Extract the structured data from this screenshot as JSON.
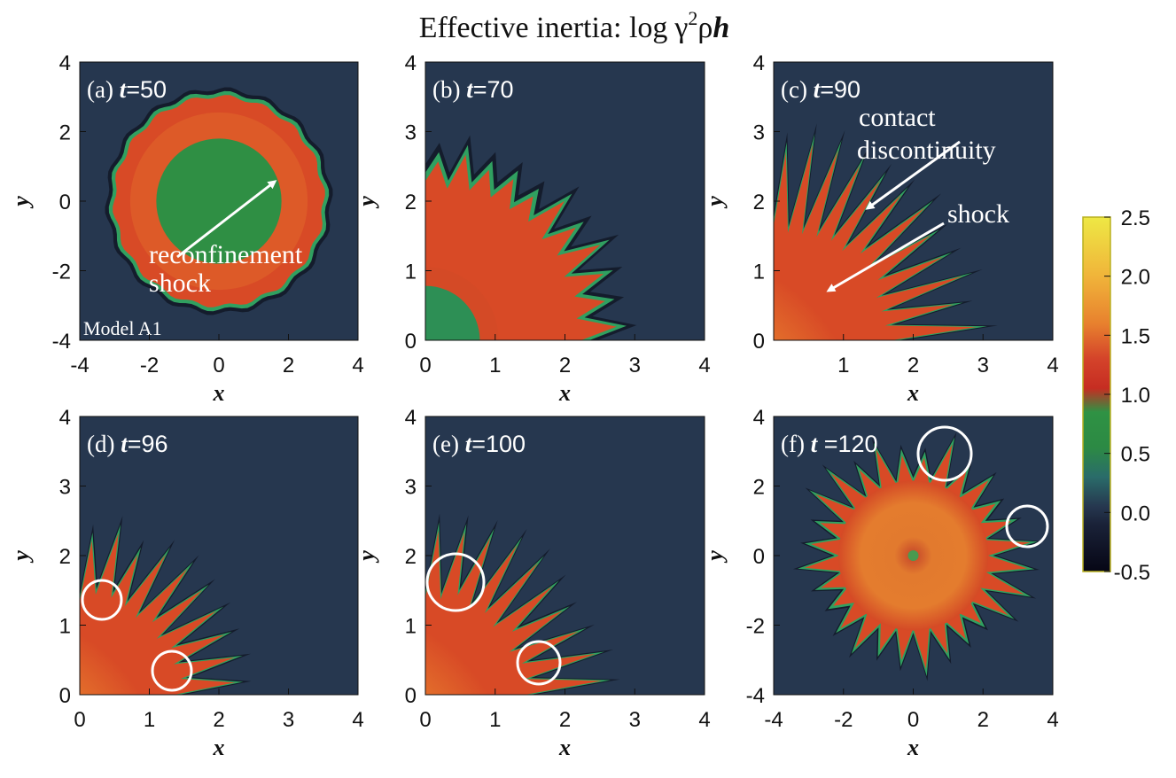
{
  "figure": {
    "title_text": "Effective inertia: log",
    "title_expr_gamma": "γ",
    "title_expr_sup": "2",
    "title_expr_rho": "ρ",
    "title_expr_h": "h"
  },
  "colorbar": {
    "ticks": [
      "2.5",
      "2.0",
      "1.5",
      "1.0",
      "0.5",
      "0.0",
      "-0.5"
    ],
    "range": [
      -0.5,
      2.5
    ],
    "stops": [
      {
        "v": -0.5,
        "color": "#060615"
      },
      {
        "v": -0.1,
        "color": "#1a2238"
      },
      {
        "v": 0.05,
        "color": "#26374f"
      },
      {
        "v": 0.3,
        "color": "#2a6c6a"
      },
      {
        "v": 0.55,
        "color": "#2c8a44"
      },
      {
        "v": 0.85,
        "color": "#2f9244"
      },
      {
        "v": 1.05,
        "color": "#c62d22"
      },
      {
        "v": 1.3,
        "color": "#d4432a"
      },
      {
        "v": 1.6,
        "color": "#e8812e"
      },
      {
        "v": 2.0,
        "color": "#f0b43a"
      },
      {
        "v": 2.5,
        "color": "#eee844"
      }
    ]
  },
  "colors": {
    "background_field": "#26374f",
    "green_core": "#2f8f44",
    "shell_red": "#d84a26",
    "shell_orange": "#e8812e",
    "edge_green": "#30a060",
    "edge_dark": "#141c2c",
    "annotation": "#ffffff"
  },
  "chart_data": [
    {
      "id": "a",
      "type": "heatmap",
      "label": "(a) ",
      "time_symbol": "t",
      "time_value": "=50",
      "xlim": [
        -4,
        4
      ],
      "ylim": [
        -4,
        4
      ],
      "xticks": [
        "-4",
        "-2",
        "0",
        "2",
        "4"
      ],
      "yticks": [
        "-4",
        "-2",
        "0",
        "2",
        "4"
      ],
      "xlabel": "x",
      "ylabel": "y",
      "model_label": "Model A1",
      "annotations": [
        "reconfinement",
        "shock"
      ]
    },
    {
      "id": "b",
      "type": "heatmap",
      "label": "(b) ",
      "time_symbol": "t",
      "time_value": "=70",
      "xlim": [
        0,
        4
      ],
      "ylim": [
        0,
        4
      ],
      "xticks": [
        "0",
        "1",
        "2",
        "3",
        "4"
      ],
      "yticks": [
        "0",
        "1",
        "2",
        "3",
        "4"
      ],
      "xlabel": "x",
      "ylabel": "y"
    },
    {
      "id": "c",
      "type": "heatmap",
      "label": "(c) ",
      "time_symbol": "t",
      "time_value": "=90",
      "xlim": [
        0,
        4
      ],
      "ylim": [
        0,
        4
      ],
      "xticks": [
        "1",
        "2",
        "3",
        "4"
      ],
      "yticks": [
        "0",
        "1",
        "2",
        "3",
        "4"
      ],
      "xlabel": "x",
      "ylabel": "y",
      "annotations": [
        "contact",
        "discontinuity",
        "shock"
      ]
    },
    {
      "id": "d",
      "type": "heatmap",
      "label": "(d) ",
      "time_symbol": "t",
      "time_value": "=96",
      "xlim": [
        0,
        4
      ],
      "ylim": [
        0,
        4
      ],
      "xticks": [
        "0",
        "1",
        "2",
        "3",
        "4"
      ],
      "yticks": [
        "0",
        "1",
        "2",
        "3",
        "4"
      ],
      "xlabel": "x",
      "ylabel": "y"
    },
    {
      "id": "e",
      "type": "heatmap",
      "label": "(e) ",
      "time_symbol": "t",
      "time_value": "=100",
      "xlim": [
        0,
        4
      ],
      "ylim": [
        0,
        4
      ],
      "xticks": [
        "0",
        "1",
        "2",
        "3",
        "4"
      ],
      "yticks": [
        "0",
        "1",
        "2",
        "3",
        "4"
      ],
      "xlabel": "x",
      "ylabel": "y"
    },
    {
      "id": "f",
      "type": "heatmap",
      "label": "(f) ",
      "time_symbol": "t",
      "time_value": " =120",
      "xlim": [
        -4,
        4
      ],
      "ylim": [
        -4,
        4
      ],
      "xticks": [
        "-4",
        "-2",
        "0",
        "2",
        "4"
      ],
      "yticks": [
        "-4",
        "-2",
        "0",
        "2",
        "4"
      ],
      "xlabel": "x",
      "ylabel": "y"
    }
  ]
}
